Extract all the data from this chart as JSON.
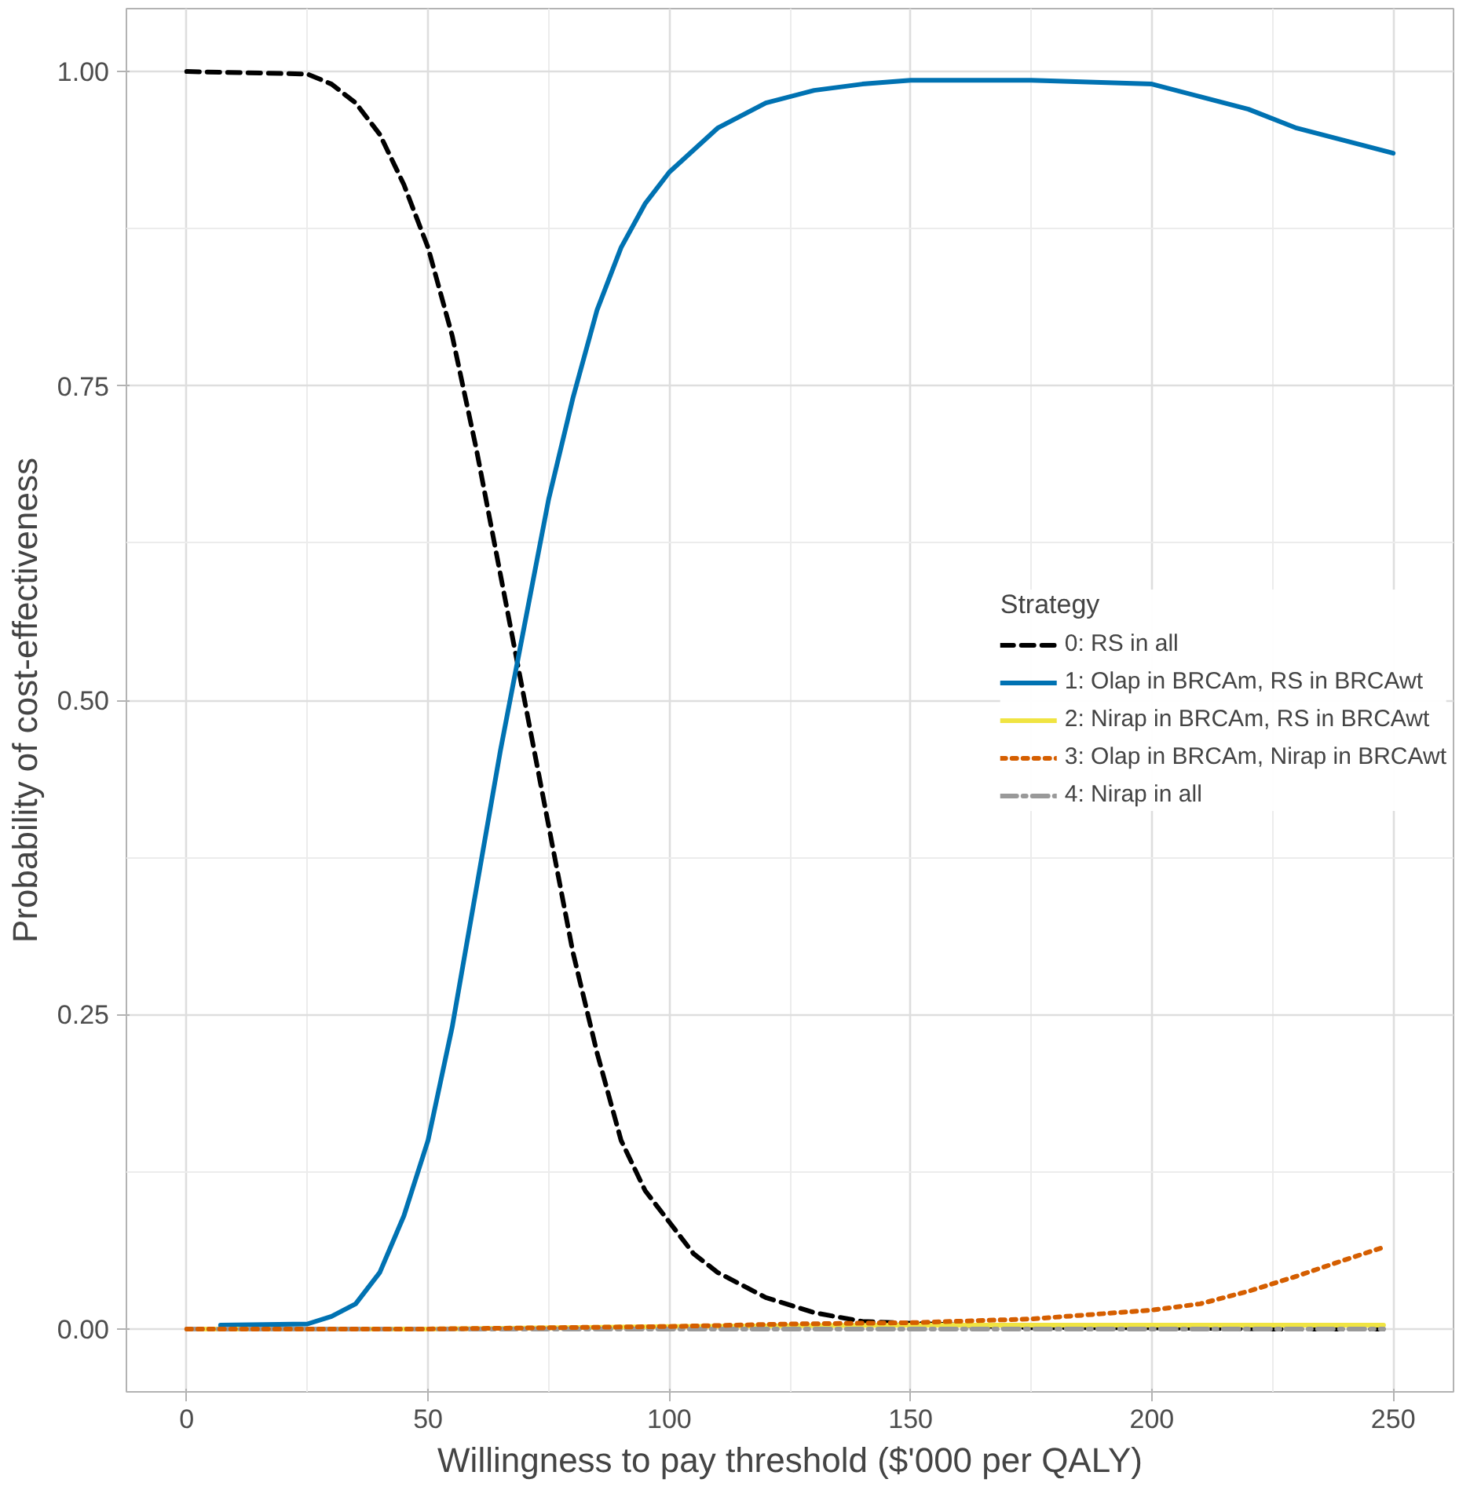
{
  "chart_data": {
    "type": "line",
    "xlabel": "Willingness to pay threshold ($'000 per QALY)",
    "ylabel": "Probability of cost-effectiveness",
    "legend_title": "Strategy",
    "legend": "right",
    "grid": true,
    "xlim": [
      -12.5,
      262.5
    ],
    "xticks": [
      0,
      50,
      100,
      150,
      200,
      250
    ],
    "ylim": [
      -0.05,
      1.05
    ],
    "yticks": [
      {
        "value": 0,
        "label": "0.00"
      },
      {
        "value": 0.25,
        "label": "0.25"
      },
      {
        "value": 0.5,
        "label": "0.50"
      },
      {
        "value": 0.75,
        "label": "0.75"
      },
      {
        "value": 1,
        "label": "1.00"
      }
    ],
    "series": [
      {
        "name": "0: RS in all",
        "color": "#000000",
        "line_style": "dashed",
        "x": [
          0,
          25,
          30,
          35,
          40,
          45,
          50,
          55,
          60,
          65,
          70,
          75,
          80,
          85,
          90,
          95,
          100,
          105,
          110,
          120,
          130,
          140,
          175,
          200,
          225,
          248
        ],
        "values": [
          1.0,
          0.998,
          0.99,
          0.975,
          0.95,
          0.91,
          0.86,
          0.79,
          0.7,
          0.6,
          0.5,
          0.4,
          0.3,
          0.22,
          0.15,
          0.11,
          0.085,
          0.06,
          0.045,
          0.025,
          0.013,
          0.006,
          0.001,
          0.001,
          0.0,
          0.0
        ]
      },
      {
        "name": "1: Olap in BRCAm, RS in BRCAwt",
        "color": "#0072b2",
        "line_style": "solid",
        "x": [
          7,
          25,
          30,
          35,
          40,
          45,
          50,
          55,
          60,
          65,
          70,
          75,
          80,
          85,
          90,
          95,
          100,
          110,
          120,
          130,
          140,
          150,
          175,
          200,
          210,
          220,
          230,
          240,
          250
        ],
        "values": [
          0.003,
          0.004,
          0.01,
          0.02,
          0.045,
          0.09,
          0.15,
          0.24,
          0.35,
          0.46,
          0.56,
          0.66,
          0.74,
          0.81,
          0.86,
          0.895,
          0.92,
          0.955,
          0.975,
          0.985,
          0.99,
          0.993,
          0.993,
          0.99,
          0.98,
          0.97,
          0.955,
          0.945,
          0.935
        ]
      },
      {
        "name": "2: Nirap in BRCAm, RS in BRCAwt",
        "color": "#f0e442",
        "line_style": "solid",
        "x": [
          0,
          50,
          100,
          150,
          200,
          248
        ],
        "values": [
          0.0,
          0.0,
          0.002,
          0.003,
          0.003,
          0.003
        ]
      },
      {
        "name": "3: Olap in BRCAm, Nirap in BRCAwt",
        "color": "#d55e00",
        "line_style": "dotted",
        "x": [
          0,
          50,
          100,
          125,
          150,
          175,
          200,
          210,
          220,
          230,
          240,
          248
        ],
        "values": [
          0.0,
          0.0,
          0.002,
          0.004,
          0.005,
          0.008,
          0.015,
          0.02,
          0.03,
          0.042,
          0.055,
          0.065
        ]
      },
      {
        "name": "4: Nirap in all",
        "color": "#999999",
        "line_style": "dashdot",
        "x": [
          0,
          50,
          100,
          150,
          200,
          248
        ],
        "values": [
          0.0,
          0.0,
          0.0,
          0.0,
          0.0,
          0.0
        ]
      }
    ]
  }
}
